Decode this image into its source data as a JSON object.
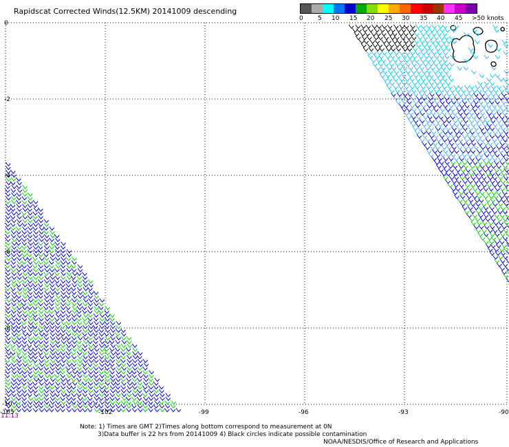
{
  "title": "Rapidscat Corrected Winds(12.5KM) 20141009 descending",
  "legend": {
    "colors": [
      "#555555",
      "#aaaaaa",
      "#00ffff",
      "#0077ff",
      "#0000cc",
      "#00aa00",
      "#88dd00",
      "#ffff00",
      "#ffaa00",
      "#ff6600",
      "#ff0000",
      "#cc0000",
      "#993300",
      "#ff33ff",
      "#cc00cc",
      "#7700aa"
    ],
    "labels": [
      "0",
      "5",
      "10",
      "15",
      "20",
      "25",
      "30",
      "35",
      "40",
      "45",
      ">50 knots"
    ]
  },
  "map": {
    "lat_ticks": [
      "0",
      "-2",
      "-4",
      "-6",
      "-8",
      "-10"
    ],
    "lon_ticks": [
      "-105",
      "-102",
      "-99",
      "-96",
      "-93",
      "-90"
    ],
    "wind_colors": {
      "blue": "#0000cc",
      "green": "#00cc00",
      "cyan": "#00ccee",
      "lightblue": "#44aaff",
      "black": "#000000"
    }
  },
  "time_label": "11:13",
  "notes": {
    "line1": "Note: 1) Times are GMT 2)Times along bottom correspond to measurement at 0N",
    "line2": "3)Data buffer is 22 hrs from 20141009 4) Black circles indicate possible contamination",
    "line3": "NOAA/NESDIS/Office of Research and Applications"
  }
}
